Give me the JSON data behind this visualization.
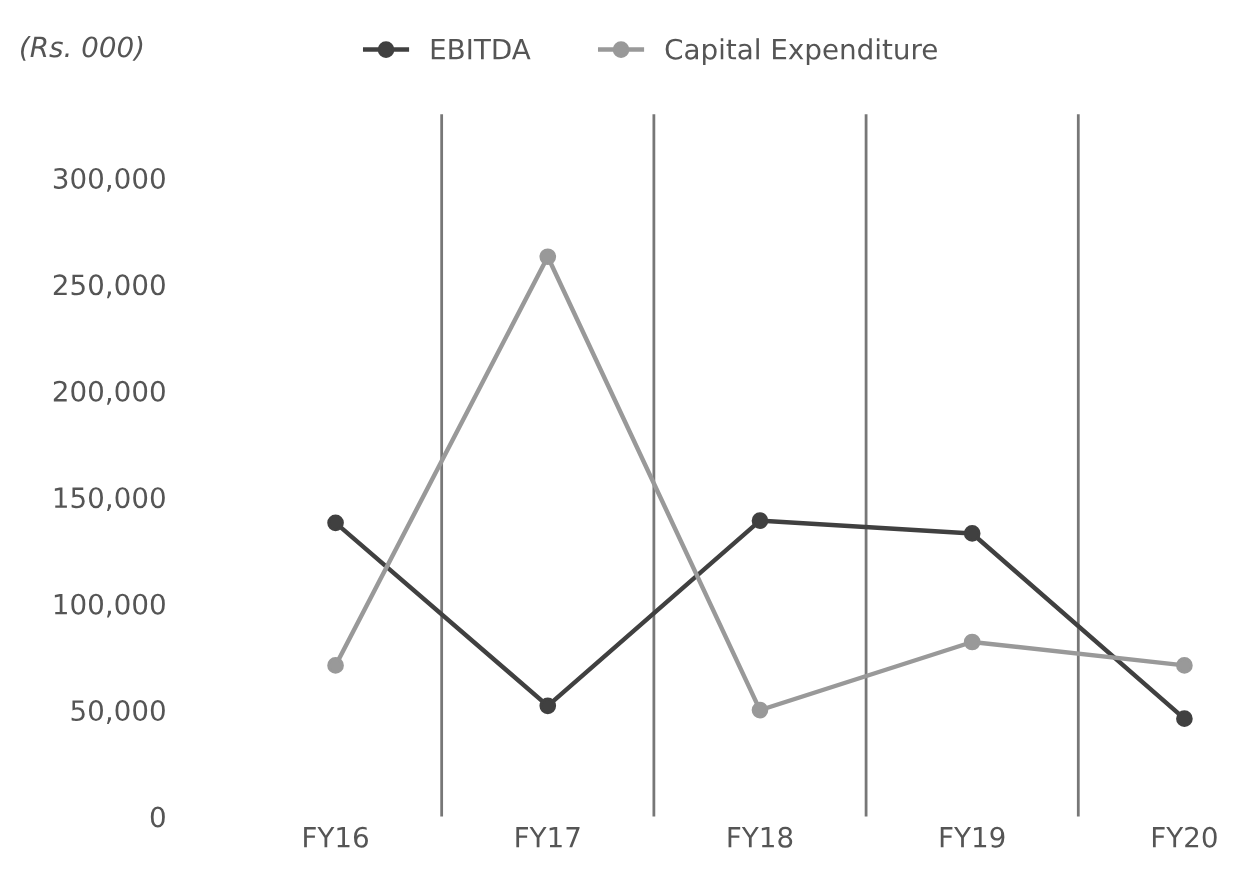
{
  "chart_data": {
    "type": "line",
    "ylabel": "(Rs. 000)",
    "categories": [
      "FY16",
      "FY17",
      "FY18",
      "FY19",
      "FY20"
    ],
    "series": [
      {
        "name": "EBITDA",
        "color": "#404040",
        "values": [
          138000,
          52000,
          139000,
          133000,
          46000
        ]
      },
      {
        "name": "Capital Expenditure",
        "color": "#999999",
        "values": [
          71000,
          263000,
          50000,
          82000,
          71000
        ]
      }
    ],
    "ylim": [
      0,
      330000
    ],
    "yticks": [
      {
        "value": 0,
        "label": "0"
      },
      {
        "value": 50000,
        "label": "50,000"
      },
      {
        "value": 100000,
        "label": "100,000"
      },
      {
        "value": 150000,
        "label": "150,000"
      },
      {
        "value": 200000,
        "label": "200,000"
      },
      {
        "value": 250000,
        "label": "250,000"
      },
      {
        "value": 300000,
        "label": "300,000"
      }
    ],
    "grid": "x",
    "legend": "top",
    "marker": "circle",
    "line_style": "solid"
  }
}
